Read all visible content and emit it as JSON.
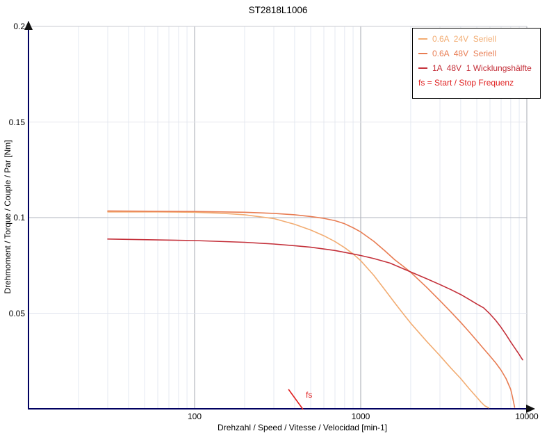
{
  "title": "ST2818L1006",
  "colors": {
    "axis": "#000060",
    "arrow": "#111111",
    "grid_minor_v": "#E5E9F2",
    "grid_major_v": "#A5A8B2",
    "grid_h": {
      "0.05": "#E0E4EE",
      "0.1": "#B2B5BF",
      "0.15": "#E3E5EA",
      "0.2": "#C8CBD2"
    }
  },
  "legend": {
    "note": "fs = Start / Stop Frequenz",
    "note_color": "#E01E1E"
  },
  "chart_data": {
    "type": "line",
    "title": "ST2818L1006",
    "xlabel": "Drehzahl / Speed / Vitesse / Velocidad [min-1]",
    "ylabel": "Drehmoment / Torque / Couple / Par [Nm]",
    "x_scale": "log",
    "xlim": [
      10,
      10000
    ],
    "ylim": [
      0,
      0.2
    ],
    "x_ticks": [
      100,
      1000,
      10000
    ],
    "x_tick_labels": [
      "100",
      "1000",
      "10000"
    ],
    "y_ticks": [
      0.05,
      0.1,
      0.15,
      0.2
    ],
    "y_tick_labels": [
      "0.05",
      "0.1",
      "0.15",
      "0.2"
    ],
    "grid": true,
    "legend_position": "top-right",
    "series": [
      {
        "name": "0.6A  24V  Seriell",
        "color": "#F2AC72",
        "points": [
          [
            30,
            0.103
          ],
          [
            60,
            0.103
          ],
          [
            100,
            0.1028
          ],
          [
            150,
            0.1022
          ],
          [
            200,
            0.1015
          ],
          [
            300,
            0.0995
          ],
          [
            400,
            0.0965
          ],
          [
            500,
            0.0935
          ],
          [
            600,
            0.0905
          ],
          [
            700,
            0.0875
          ],
          [
            800,
            0.0843
          ],
          [
            900,
            0.081
          ],
          [
            1000,
            0.0775
          ],
          [
            1200,
            0.0698
          ],
          [
            1400,
            0.0622
          ],
          [
            1600,
            0.0555
          ],
          [
            1800,
            0.0498
          ],
          [
            2000,
            0.0448
          ],
          [
            2500,
            0.0352
          ],
          [
            3000,
            0.0278
          ],
          [
            3500,
            0.0212
          ],
          [
            4000,
            0.0158
          ],
          [
            4500,
            0.0105
          ],
          [
            5000,
            0.006
          ],
          [
            5300,
            0.0035
          ],
          [
            5600,
            0.0015
          ],
          [
            5900,
            0.0005
          ]
        ]
      },
      {
        "name": "0.6A  48V  Seriell",
        "color": "#E87C52",
        "points": [
          [
            30,
            0.1035
          ],
          [
            100,
            0.1032
          ],
          [
            200,
            0.1028
          ],
          [
            300,
            0.1022
          ],
          [
            400,
            0.1015
          ],
          [
            500,
            0.1006
          ],
          [
            600,
            0.0996
          ],
          [
            700,
            0.0984
          ],
          [
            800,
            0.0968
          ],
          [
            900,
            0.0947
          ],
          [
            1000,
            0.0925
          ],
          [
            1200,
            0.0876
          ],
          [
            1400,
            0.0826
          ],
          [
            1600,
            0.078
          ],
          [
            1800,
            0.0746
          ],
          [
            2000,
            0.0714
          ],
          [
            2500,
            0.0635
          ],
          [
            3000,
            0.0566
          ],
          [
            3500,
            0.0506
          ],
          [
            4000,
            0.0452
          ],
          [
            4500,
            0.0402
          ],
          [
            5000,
            0.0356
          ],
          [
            5500,
            0.0314
          ],
          [
            6000,
            0.0276
          ],
          [
            6500,
            0.024
          ],
          [
            7000,
            0.0202
          ],
          [
            7500,
            0.0158
          ],
          [
            8000,
            0.0102
          ],
          [
            8200,
            0.0062
          ],
          [
            8400,
            0.0018
          ],
          [
            8450,
            0.0008
          ]
        ]
      },
      {
        "name": "1A  48V  1 Wicklungshälfte",
        "color": "#C4303A",
        "points": [
          [
            30,
            0.0888
          ],
          [
            100,
            0.088
          ],
          [
            200,
            0.0871
          ],
          [
            300,
            0.0862
          ],
          [
            400,
            0.0853
          ],
          [
            500,
            0.0845
          ],
          [
            700,
            0.0828
          ],
          [
            900,
            0.081
          ],
          [
            1000,
            0.0802
          ],
          [
            1200,
            0.0786
          ],
          [
            1500,
            0.0762
          ],
          [
            2000,
            0.0716
          ],
          [
            2500,
            0.068
          ],
          [
            3000,
            0.065
          ],
          [
            3500,
            0.0623
          ],
          [
            4000,
            0.0598
          ],
          [
            4500,
            0.0572
          ],
          [
            5000,
            0.0548
          ],
          [
            5500,
            0.0528
          ],
          [
            6000,
            0.0496
          ],
          [
            6500,
            0.0462
          ],
          [
            7000,
            0.0426
          ],
          [
            7500,
            0.0388
          ],
          [
            8000,
            0.035
          ],
          [
            8500,
            0.0316
          ],
          [
            9000,
            0.0284
          ],
          [
            9300,
            0.0264
          ],
          [
            9450,
            0.0256
          ]
        ]
      }
    ],
    "fs_marker": {
      "label": "fs",
      "speed_min1": 450,
      "color": "#E01E1E"
    }
  }
}
